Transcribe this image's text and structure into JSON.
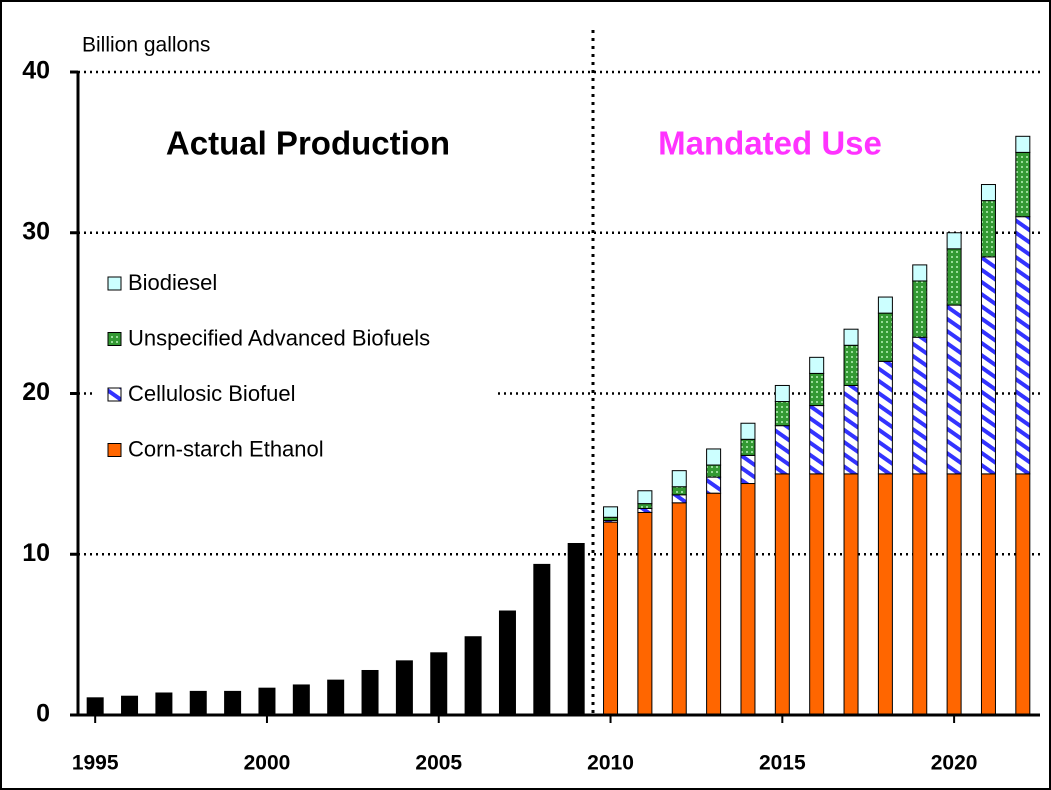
{
  "chart_data": {
    "type": "stacked_bar",
    "y_label": "Billion gallons",
    "annotations": [
      "Actual Production",
      "Mandated Use"
    ],
    "x": [
      1995,
      1996,
      1997,
      1998,
      1999,
      2000,
      2001,
      2002,
      2003,
      2004,
      2005,
      2006,
      2007,
      2008,
      2009,
      2010,
      2011,
      2012,
      2013,
      2014,
      2015,
      2016,
      2017,
      2018,
      2019,
      2020,
      2021,
      2022
    ],
    "series": [
      {
        "color": "#000000",
        "values": [
          1.1,
          1.2,
          1.4,
          1.5,
          1.5,
          1.7,
          1.9,
          2.2,
          2.8,
          3.4,
          3.9,
          4.9,
          6.5,
          9.4,
          10.7,
          null,
          null,
          null,
          null,
          null,
          null,
          null,
          null,
          null,
          null,
          null,
          null,
          null
        ]
      },
      {
        "name": "Corn-starch Ethanol",
        "color": "#ff6600",
        "values": [
          null,
          null,
          null,
          null,
          null,
          null,
          null,
          null,
          null,
          null,
          null,
          null,
          null,
          null,
          null,
          12,
          12.6,
          13.2,
          13.8,
          14.4,
          15,
          15,
          15,
          15,
          15,
          15,
          15,
          15
        ]
      },
      {
        "name": "Cellulosic Biofuel",
        "color": "#3333ff",
        "values": [
          null,
          null,
          null,
          null,
          null,
          null,
          null,
          null,
          null,
          null,
          null,
          null,
          null,
          null,
          null,
          0.1,
          0.25,
          0.5,
          1,
          1.75,
          3,
          4.25,
          5.5,
          7,
          8.5,
          10.5,
          13.5,
          16
        ]
      },
      {
        "name": "Unspecified Advanced Biofuels",
        "color": "#339933",
        "values": [
          null,
          null,
          null,
          null,
          null,
          null,
          null,
          null,
          null,
          null,
          null,
          null,
          null,
          null,
          null,
          0.2,
          0.3,
          0.5,
          0.75,
          1,
          1.5,
          2,
          2.5,
          3,
          3.5,
          3.5,
          3.5,
          4
        ]
      },
      {
        "name": "Biodiesel",
        "color": "#ccffff",
        "values": [
          null,
          null,
          null,
          null,
          null,
          null,
          null,
          null,
          null,
          null,
          null,
          null,
          null,
          null,
          null,
          0.65,
          0.8,
          1,
          1,
          1,
          1,
          1,
          1,
          1,
          1,
          1,
          1,
          1
        ]
      }
    ],
    "xlim": [
      1994.5,
      2022.5
    ],
    "xticks": [
      1995,
      2000,
      2005,
      2010,
      2015,
      2020
    ],
    "ylim": [
      0,
      40
    ],
    "yticks": [
      0,
      10,
      20,
      30,
      40
    ],
    "grid": true,
    "legend": "upper left"
  }
}
